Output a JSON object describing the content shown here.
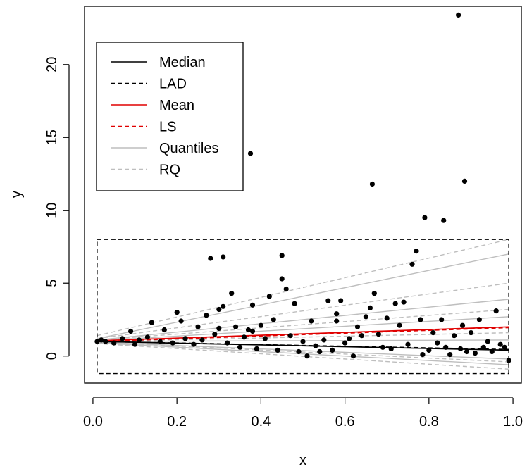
{
  "chart_data": {
    "type": "scatter",
    "title": "",
    "xlabel": "x",
    "ylabel": "y",
    "xlim": [
      -0.02,
      1.02
    ],
    "ylim": [
      -1.85,
      24.0
    ],
    "grid": false,
    "legend_position": "top-left",
    "x_ticks": [
      {
        "value": 0.0,
        "label": "0.0"
      },
      {
        "value": 0.2,
        "label": "0.2"
      },
      {
        "value": 0.4,
        "label": "0.4"
      },
      {
        "value": 0.6,
        "label": "0.6"
      },
      {
        "value": 0.8,
        "label": "0.8"
      },
      {
        "value": 1.0,
        "label": "1.0"
      }
    ],
    "y_ticks": [
      {
        "value": 0,
        "label": "0"
      },
      {
        "value": 5,
        "label": "5"
      },
      {
        "value": 10,
        "label": "10"
      },
      {
        "value": 15,
        "label": "15"
      },
      {
        "value": 20,
        "label": "20"
      }
    ],
    "legend": [
      {
        "label": "Median",
        "color": "#000000",
        "dashed": false
      },
      {
        "label": "LAD",
        "color": "#000000",
        "dashed": true
      },
      {
        "label": "Mean",
        "color": "#e00000",
        "dashed": false
      },
      {
        "label": "LS",
        "color": "#e00000",
        "dashed": true
      },
      {
        "label": "Quantiles",
        "color": "#bebebe",
        "dashed": false
      },
      {
        "label": "RQ",
        "color": "#bebebe",
        "dashed": true
      }
    ],
    "box": {
      "x": [
        0.01,
        0.99
      ],
      "y": [
        -1.2,
        8.0
      ]
    },
    "series": [
      {
        "name": "Median",
        "color": "#000000",
        "dashed": false,
        "x": [
          0.01,
          0.99
        ],
        "y": [
          1.0,
          0.4
        ]
      },
      {
        "name": "LAD",
        "color": "#000000",
        "dashed": true,
        "x": [
          0.01,
          0.99
        ],
        "y": [
          1.0,
          0.45
        ]
      },
      {
        "name": "Mean",
        "color": "#e00000",
        "dashed": false,
        "x": [
          0.01,
          0.99
        ],
        "y": [
          1.05,
          2.0
        ]
      },
      {
        "name": "LS",
        "color": "#e00000",
        "dashed": true,
        "x": [
          0.01,
          0.99
        ],
        "y": [
          1.0,
          1.95
        ]
      },
      {
        "name": "Quantiles",
        "color": "#bebebe",
        "dashed": false,
        "x": [
          0.01,
          0.99
        ],
        "y": [
          1.2,
          7.0
        ]
      },
      {
        "name": "Quantiles",
        "color": "#bebebe",
        "dashed": false,
        "x": [
          0.01,
          0.99
        ],
        "y": [
          1.1,
          3.9
        ]
      },
      {
        "name": "Quantiles",
        "color": "#bebebe",
        "dashed": false,
        "x": [
          0.01,
          0.99
        ],
        "y": [
          1.05,
          2.7
        ]
      },
      {
        "name": "Quantiles",
        "color": "#bebebe",
        "dashed": false,
        "x": [
          0.01,
          0.99
        ],
        "y": [
          1.0,
          1.1
        ]
      },
      {
        "name": "Quantiles",
        "color": "#bebebe",
        "dashed": false,
        "x": [
          0.01,
          0.99
        ],
        "y": [
          0.95,
          -0.2
        ]
      },
      {
        "name": "Quantiles",
        "color": "#bebebe",
        "dashed": false,
        "x": [
          0.01,
          0.99
        ],
        "y": [
          0.9,
          -0.6
        ]
      },
      {
        "name": "RQ",
        "color": "#bebebe",
        "dashed": true,
        "x": [
          0.01,
          0.99
        ],
        "y": [
          1.4,
          8.0
        ]
      },
      {
        "name": "RQ",
        "color": "#bebebe",
        "dashed": true,
        "x": [
          0.01,
          0.99
        ],
        "y": [
          1.2,
          5.0
        ]
      },
      {
        "name": "RQ",
        "color": "#bebebe",
        "dashed": true,
        "x": [
          0.01,
          0.99
        ],
        "y": [
          1.1,
          3.2
        ]
      },
      {
        "name": "RQ",
        "color": "#bebebe",
        "dashed": true,
        "x": [
          0.01,
          0.99
        ],
        "y": [
          1.0,
          1.6
        ]
      },
      {
        "name": "RQ",
        "color": "#bebebe",
        "dashed": true,
        "x": [
          0.01,
          0.99
        ],
        "y": [
          0.95,
          -0.4
        ]
      },
      {
        "name": "RQ",
        "color": "#bebebe",
        "dashed": true,
        "x": [
          0.01,
          0.99
        ],
        "y": [
          0.85,
          -0.9
        ]
      }
    ],
    "points": {
      "x": [
        0.01,
        0.02,
        0.03,
        0.05,
        0.07,
        0.09,
        0.1,
        0.11,
        0.13,
        0.14,
        0.16,
        0.17,
        0.19,
        0.2,
        0.21,
        0.22,
        0.24,
        0.25,
        0.26,
        0.27,
        0.28,
        0.29,
        0.3,
        0.3,
        0.31,
        0.31,
        0.32,
        0.33,
        0.34,
        0.35,
        0.36,
        0.37,
        0.375,
        0.38,
        0.38,
        0.39,
        0.4,
        0.41,
        0.42,
        0.43,
        0.44,
        0.45,
        0.45,
        0.46,
        0.47,
        0.48,
        0.49,
        0.5,
        0.51,
        0.52,
        0.53,
        0.54,
        0.55,
        0.56,
        0.57,
        0.58,
        0.58,
        0.59,
        0.6,
        0.61,
        0.62,
        0.63,
        0.64,
        0.65,
        0.66,
        0.665,
        0.67,
        0.68,
        0.69,
        0.7,
        0.71,
        0.72,
        0.73,
        0.74,
        0.75,
        0.76,
        0.77,
        0.78,
        0.785,
        0.79,
        0.8,
        0.81,
        0.82,
        0.83,
        0.835,
        0.84,
        0.85,
        0.86,
        0.87,
        0.875,
        0.88,
        0.885,
        0.89,
        0.9,
        0.91,
        0.92,
        0.93,
        0.94,
        0.95,
        0.96,
        0.97,
        0.98,
        0.99
      ],
      "y": [
        1.0,
        1.1,
        1.0,
        0.9,
        1.2,
        1.7,
        0.8,
        1.1,
        1.3,
        2.3,
        1.0,
        1.8,
        0.9,
        3.0,
        2.4,
        1.2,
        0.8,
        2.0,
        1.1,
        2.8,
        6.7,
        1.5,
        3.2,
        1.9,
        6.8,
        3.4,
        0.9,
        4.3,
        2.0,
        0.6,
        1.3,
        1.8,
        13.9,
        3.5,
        1.7,
        0.5,
        2.1,
        1.2,
        4.1,
        2.5,
        0.4,
        6.9,
        5.3,
        4.6,
        1.4,
        3.6,
        0.3,
        1.0,
        0.0,
        2.4,
        0.7,
        0.3,
        1.1,
        3.8,
        0.4,
        2.9,
        2.4,
        3.8,
        0.9,
        1.2,
        0.0,
        2.0,
        1.4,
        2.7,
        3.3,
        11.8,
        4.3,
        1.5,
        0.6,
        2.6,
        0.5,
        3.6,
        2.1,
        3.7,
        0.8,
        6.3,
        7.2,
        2.5,
        0.1,
        9.5,
        0.4,
        1.6,
        0.9,
        2.5,
        9.3,
        0.6,
        0.1,
        1.4,
        23.4,
        0.5,
        2.1,
        12.0,
        0.3,
        1.6,
        0.2,
        2.5,
        0.6,
        1.0,
        0.3,
        3.1,
        0.8,
        0.6,
        -0.3
      ]
    }
  }
}
